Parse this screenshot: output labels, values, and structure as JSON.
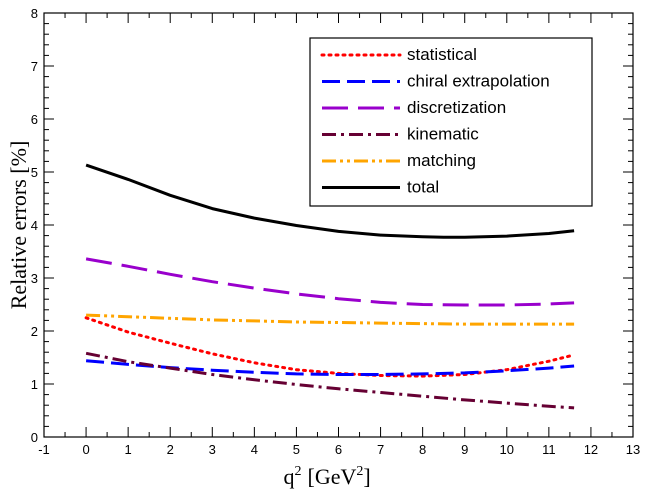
{
  "chart_data": {
    "type": "line",
    "title": "",
    "xlabel": "q",
    "xlabel_sup": "2",
    "xlabel_unit": "[GeV",
    "xlabel_unit_sup": "2",
    "xlabel_unit_close": "]",
    "ylabel": "Relative errors [%]",
    "xlim": [
      -1,
      13
    ],
    "ylim": [
      0,
      8
    ],
    "xticks": [
      "-1",
      "0",
      "1",
      "2",
      "3",
      "4",
      "5",
      "6",
      "7",
      "8",
      "9",
      "10",
      "11",
      "12",
      "13"
    ],
    "yticks": [
      "0",
      "1",
      "2",
      "3",
      "4",
      "5",
      "6",
      "7",
      "8"
    ],
    "grid": false,
    "legend_position": "top-right",
    "series": [
      {
        "name": "statistical",
        "color": "#ff0000",
        "dash": "dotted",
        "x": [
          0,
          1,
          2,
          3,
          4,
          5,
          6,
          7,
          8,
          9,
          10,
          11,
          11.6
        ],
        "y": [
          2.25,
          1.98,
          1.77,
          1.57,
          1.4,
          1.27,
          1.2,
          1.16,
          1.15,
          1.18,
          1.27,
          1.43,
          1.55
        ]
      },
      {
        "name": "chiral extrapolation",
        "color": "#0000ff",
        "dash": "long-dash",
        "x": [
          0,
          1,
          2,
          3,
          4,
          5,
          6,
          7,
          8,
          9,
          10,
          11,
          11.6
        ],
        "y": [
          1.44,
          1.37,
          1.31,
          1.26,
          1.22,
          1.19,
          1.18,
          1.18,
          1.19,
          1.21,
          1.25,
          1.3,
          1.34
        ]
      },
      {
        "name": "discretization",
        "color": "#9900cc",
        "dash": "extra-long-dash",
        "x": [
          0,
          1,
          2,
          3,
          4,
          5,
          6,
          7,
          8,
          9,
          10,
          11,
          11.6
        ],
        "y": [
          3.36,
          3.22,
          3.07,
          2.93,
          2.81,
          2.7,
          2.61,
          2.54,
          2.5,
          2.49,
          2.49,
          2.51,
          2.53
        ]
      },
      {
        "name": "kinematic",
        "color": "#660033",
        "dash": "dash-dot",
        "x": [
          0,
          1,
          2,
          3,
          4,
          5,
          6,
          7,
          8,
          9,
          10,
          11,
          11.6
        ],
        "y": [
          1.58,
          1.42,
          1.3,
          1.18,
          1.08,
          0.99,
          0.91,
          0.84,
          0.77,
          0.7,
          0.64,
          0.58,
          0.55
        ]
      },
      {
        "name": "matching",
        "color": "#ffa500",
        "dash": "dash-dot-dot",
        "x": [
          0,
          1,
          2,
          3,
          4,
          5,
          6,
          7,
          8,
          9,
          10,
          11,
          11.6
        ],
        "y": [
          2.3,
          2.27,
          2.24,
          2.21,
          2.19,
          2.17,
          2.16,
          2.15,
          2.14,
          2.13,
          2.13,
          2.13,
          2.13
        ]
      },
      {
        "name": "total",
        "color": "#000000",
        "dash": "solid",
        "x": [
          0,
          1,
          2,
          3,
          4,
          5,
          6,
          7,
          8,
          8.5,
          9,
          10,
          11,
          11.6
        ],
        "y": [
          5.13,
          4.86,
          4.56,
          4.31,
          4.13,
          3.99,
          3.88,
          3.81,
          3.78,
          3.77,
          3.77,
          3.79,
          3.84,
          3.89
        ]
      }
    ]
  }
}
